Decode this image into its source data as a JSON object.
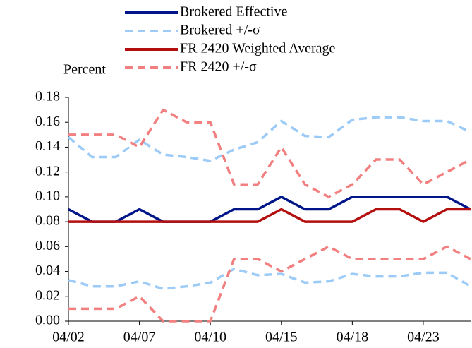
{
  "chart_data": {
    "type": "line",
    "y_label": "Percent",
    "categories": [
      "04/02",
      null,
      null,
      "04/07",
      null,
      null,
      "04/10",
      null,
      null,
      "04/15",
      null,
      null,
      "04/18",
      null,
      null,
      "04/23",
      null,
      null
    ],
    "series": [
      {
        "name": "Brokered Effective",
        "color": "#00158a",
        "dashed": false,
        "values": [
          0.09,
          0.08,
          0.08,
          0.09,
          0.08,
          0.08,
          0.08,
          0.09,
          0.09,
          0.1,
          0.09,
          0.09,
          0.1,
          0.1,
          0.1,
          0.1,
          0.1,
          0.09
        ]
      },
      {
        "name": "Brokered +/-σ",
        "color": "#9dcbf7",
        "dashed": true,
        "values": [
          0.148,
          0.132,
          0.132,
          0.146,
          0.134,
          0.132,
          0.129,
          0.138,
          0.144,
          0.161,
          0.149,
          0.148,
          0.162,
          0.164,
          0.164,
          0.161,
          0.161,
          0.152
        ],
        "lower_values": [
          0.033,
          0.028,
          0.028,
          0.032,
          0.026,
          0.028,
          0.031,
          0.042,
          0.037,
          0.038,
          0.031,
          0.032,
          0.038,
          0.036,
          0.036,
          0.039,
          0.039,
          0.028
        ]
      },
      {
        "name": "FR 2420 Weighted Average",
        "color": "#b30f0f",
        "dashed": false,
        "values": [
          0.08,
          0.08,
          0.08,
          0.08,
          0.08,
          0.08,
          0.08,
          0.08,
          0.08,
          0.09,
          0.08,
          0.08,
          0.08,
          0.09,
          0.09,
          0.08,
          0.09,
          0.09
        ]
      },
      {
        "name": "FR 2420 +/-σ",
        "color": "#f28080",
        "dashed": true,
        "values": [
          0.15,
          0.15,
          0.15,
          0.14,
          0.17,
          0.16,
          0.16,
          0.11,
          0.11,
          0.14,
          0.11,
          0.1,
          0.11,
          0.13,
          0.13,
          0.11,
          0.12,
          0.13
        ],
        "lower_values": [
          0.01,
          0.01,
          0.01,
          0.02,
          0.0,
          0.0,
          0.0,
          0.05,
          0.05,
          0.04,
          0.05,
          0.06,
          0.05,
          0.05,
          0.05,
          0.05,
          0.06,
          0.05
        ]
      }
    ],
    "ylim": [
      0,
      0.18
    ],
    "yticks": [
      {
        "value": 0,
        "label": "0.00"
      },
      0.02,
      0.04,
      0.06,
      0.08,
      {
        "value": 0.1,
        "label": "0.10"
      },
      0.12,
      0.14,
      0.16,
      0.18
    ],
    "legend": "top"
  }
}
